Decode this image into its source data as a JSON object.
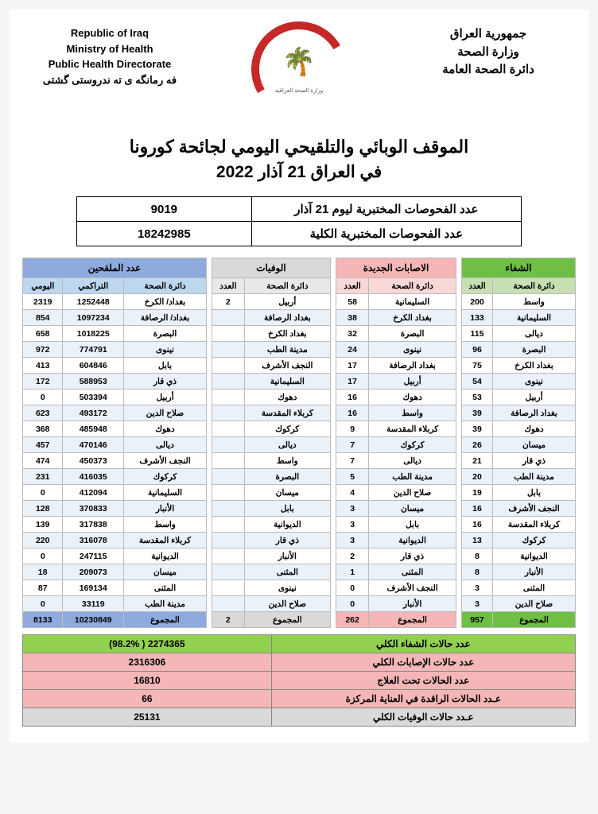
{
  "header": {
    "left_en": [
      "Republic of Iraq",
      "Ministry of Health",
      "Public Health Directorate",
      "فه رمانگه ی ته ندروستی گشتی"
    ],
    "right_ar": [
      "جمهورية العراق",
      "وزارة الصحة",
      "دائرة الصحة العامة"
    ],
    "logo_caption": "وزارة الصحة العراقية"
  },
  "title": "الموقف الوبائي والتلقيحي اليومي لجائحة كورونا",
  "subtitle": "في العراق  21  آذار  2022",
  "tests": {
    "daily_label": "عدد الفحوصات المختبرية  ليوم  21  آذار",
    "daily_value": "9019",
    "total_label": "عدد الفحوصات المختبرية الكلية",
    "total_value": "18242985"
  },
  "sections": {
    "recoveries": {
      "title": "الشفاء",
      "cols": [
        "دائرة الصحة",
        "العدد"
      ],
      "rows": [
        [
          "واسط",
          "200"
        ],
        [
          "السليمانية",
          "133"
        ],
        [
          "ديالى",
          "115"
        ],
        [
          "البصرة",
          "96"
        ],
        [
          "بغداد الكرخ",
          "75"
        ],
        [
          "نينوى",
          "54"
        ],
        [
          "أربيل",
          "53"
        ],
        [
          "بغداد الرصافة",
          "39"
        ],
        [
          "دهوك",
          "39"
        ],
        [
          "ميسان",
          "26"
        ],
        [
          "ذي قار",
          "21"
        ],
        [
          "مدينة الطب",
          "20"
        ],
        [
          "بابل",
          "19"
        ],
        [
          "النجف الأشرف",
          "16"
        ],
        [
          "كربلاء المقدسة",
          "16"
        ],
        [
          "كركوك",
          "13"
        ],
        [
          "الديوانية",
          "8"
        ],
        [
          "الأنبار",
          "8"
        ],
        [
          "المثنى",
          "3"
        ],
        [
          "صلاح الدين",
          "3"
        ]
      ],
      "total": [
        "المجموع",
        "957"
      ]
    },
    "new_cases": {
      "title": "الاصابات الجديدة",
      "cols": [
        "دائرة الصحة",
        "العدد"
      ],
      "rows": [
        [
          "السليمانية",
          "58"
        ],
        [
          "بغداد الكرخ",
          "38"
        ],
        [
          "البصرة",
          "32"
        ],
        [
          "نينوى",
          "24"
        ],
        [
          "بغداد الرصافة",
          "17"
        ],
        [
          "أربيل",
          "17"
        ],
        [
          "دهوك",
          "16"
        ],
        [
          "واسط",
          "16"
        ],
        [
          "كربلاء المقدسة",
          "9"
        ],
        [
          "كركوك",
          "7"
        ],
        [
          "ديالى",
          "7"
        ],
        [
          "مدينة الطب",
          "5"
        ],
        [
          "صلاح الدين",
          "4"
        ],
        [
          "ميسان",
          "3"
        ],
        [
          "بابل",
          "3"
        ],
        [
          "الديوانية",
          "3"
        ],
        [
          "ذي قار",
          "2"
        ],
        [
          "المثنى",
          "1"
        ],
        [
          "النجف الأشرف",
          "0"
        ],
        [
          "الأنبار",
          "0"
        ]
      ],
      "total": [
        "المجموع",
        "262"
      ]
    },
    "deaths": {
      "title": "الوفيات",
      "cols": [
        "دائرة الصحة",
        "العدد"
      ],
      "rows": [
        [
          "أربيل",
          "2"
        ],
        [
          "بغداد الرصافة",
          ""
        ],
        [
          "بغداد الكرخ",
          ""
        ],
        [
          "مدينة الطب",
          ""
        ],
        [
          "النجف الأشرف",
          ""
        ],
        [
          "السليمانية",
          ""
        ],
        [
          "دهوك",
          ""
        ],
        [
          "كربلاء المقدسة",
          ""
        ],
        [
          "كركوك",
          ""
        ],
        [
          "ديالى",
          ""
        ],
        [
          "واسط",
          ""
        ],
        [
          "البصرة",
          ""
        ],
        [
          "ميسان",
          ""
        ],
        [
          "بابل",
          ""
        ],
        [
          "الديوانية",
          ""
        ],
        [
          "ذي قار",
          ""
        ],
        [
          "الأنبار",
          ""
        ],
        [
          "المثنى",
          ""
        ],
        [
          "نينوى",
          ""
        ],
        [
          "صلاح الدين",
          ""
        ]
      ],
      "total": [
        "المجموع",
        "2"
      ]
    },
    "vaccinated": {
      "title": "عدد الملقحين",
      "cols": [
        "دائرة الصحة",
        "التراكمي",
        "اليومي"
      ],
      "rows": [
        [
          "بغداد/ الكرخ",
          "1252448",
          "2319"
        ],
        [
          "بغداد/ الرصافة",
          "1097234",
          "854"
        ],
        [
          "البصرة",
          "1018225",
          "658"
        ],
        [
          "نينوى",
          "774791",
          "972"
        ],
        [
          "بابل",
          "604846",
          "413"
        ],
        [
          "ذي قار",
          "588953",
          "172"
        ],
        [
          "أربيل",
          "503394",
          "0"
        ],
        [
          "صلاح الدين",
          "493172",
          "623"
        ],
        [
          "دهوك",
          "485948",
          "368"
        ],
        [
          "ديالى",
          "470146",
          "457"
        ],
        [
          "النجف الأشرف",
          "450373",
          "474"
        ],
        [
          "كركوك",
          "416035",
          "231"
        ],
        [
          "السليمانية",
          "412094",
          "0"
        ],
        [
          "الأنبار",
          "370833",
          "128"
        ],
        [
          "واسط",
          "317838",
          "139"
        ],
        [
          "كربلاء المقدسة",
          "316078",
          "220"
        ],
        [
          "الديوانية",
          "247115",
          "0"
        ],
        [
          "ميسان",
          "209073",
          "18"
        ],
        [
          "المثنى",
          "169134",
          "87"
        ],
        [
          "مدينة الطب",
          "33119",
          "0"
        ]
      ],
      "total": [
        "المجموع",
        "10230849",
        "8133"
      ]
    }
  },
  "summary": [
    {
      "cls": "sum-green",
      "label": "عدد حالات الشفاء الكلي",
      "value": "2274365  ( 98.2%)"
    },
    {
      "cls": "sum-pink",
      "label": "عدد حالات الإصابات الكلي",
      "value": "2316306"
    },
    {
      "cls": "sum-pink",
      "label": "عدد الحالات تحت العلاج",
      "value": "16810"
    },
    {
      "cls": "sum-pink",
      "label": "عـدد الحالات الراقدة في العناية المركزة",
      "value": "66"
    },
    {
      "cls": "sum-gray",
      "label": "عـدد حالات الوفيات الكلي",
      "value": "25131"
    }
  ]
}
